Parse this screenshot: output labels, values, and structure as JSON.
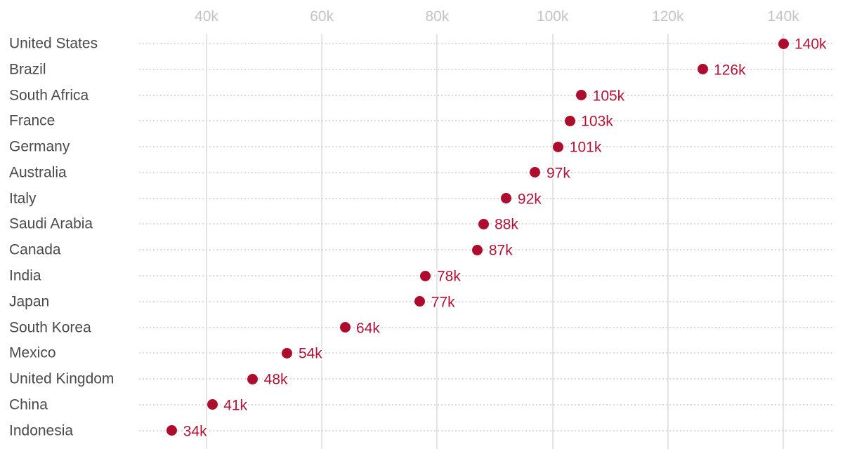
{
  "chart_data": {
    "type": "scatter",
    "subtype": "dot-plot",
    "title": "",
    "xlabel": "",
    "ylabel": "",
    "unit_suffix": "k",
    "categories": [
      "United States",
      "Brazil",
      "South Africa",
      "France",
      "Germany",
      "Australia",
      "Italy",
      "Saudi Arabia",
      "Canada",
      "India",
      "Japan",
      "South Korea",
      "Mexico",
      "United Kingdom",
      "China",
      "Indonesia"
    ],
    "values": [
      140000,
      126000,
      105000,
      103000,
      101000,
      97000,
      92000,
      88000,
      87000,
      78000,
      77000,
      64000,
      54000,
      48000,
      41000,
      34000
    ],
    "value_labels": [
      "140k",
      "126k",
      "105k",
      "103k",
      "101k",
      "97k",
      "92k",
      "88k",
      "87k",
      "78k",
      "77k",
      "64k",
      "54k",
      "48k",
      "41k",
      "34k"
    ],
    "x_axis": {
      "ticks": [
        40000,
        60000,
        80000,
        100000,
        120000,
        140000
      ],
      "tick_labels": [
        "40k",
        "60k",
        "80k",
        "100k",
        "120k",
        "140k"
      ],
      "range": [
        28300,
        149000
      ],
      "position": "top"
    },
    "grid": {
      "vertical": "solid",
      "horizontal": "dotted"
    },
    "legend_position": "none",
    "colors": {
      "dot": "#ae0c2c",
      "value_label": "#b31236",
      "category_label": "#4a4a4a",
      "tick_label": "#c4c4c4",
      "vertical_grid": "#e4e4e4",
      "dotted_grid": "#d9d9d9",
      "background": "#ffffff"
    }
  }
}
